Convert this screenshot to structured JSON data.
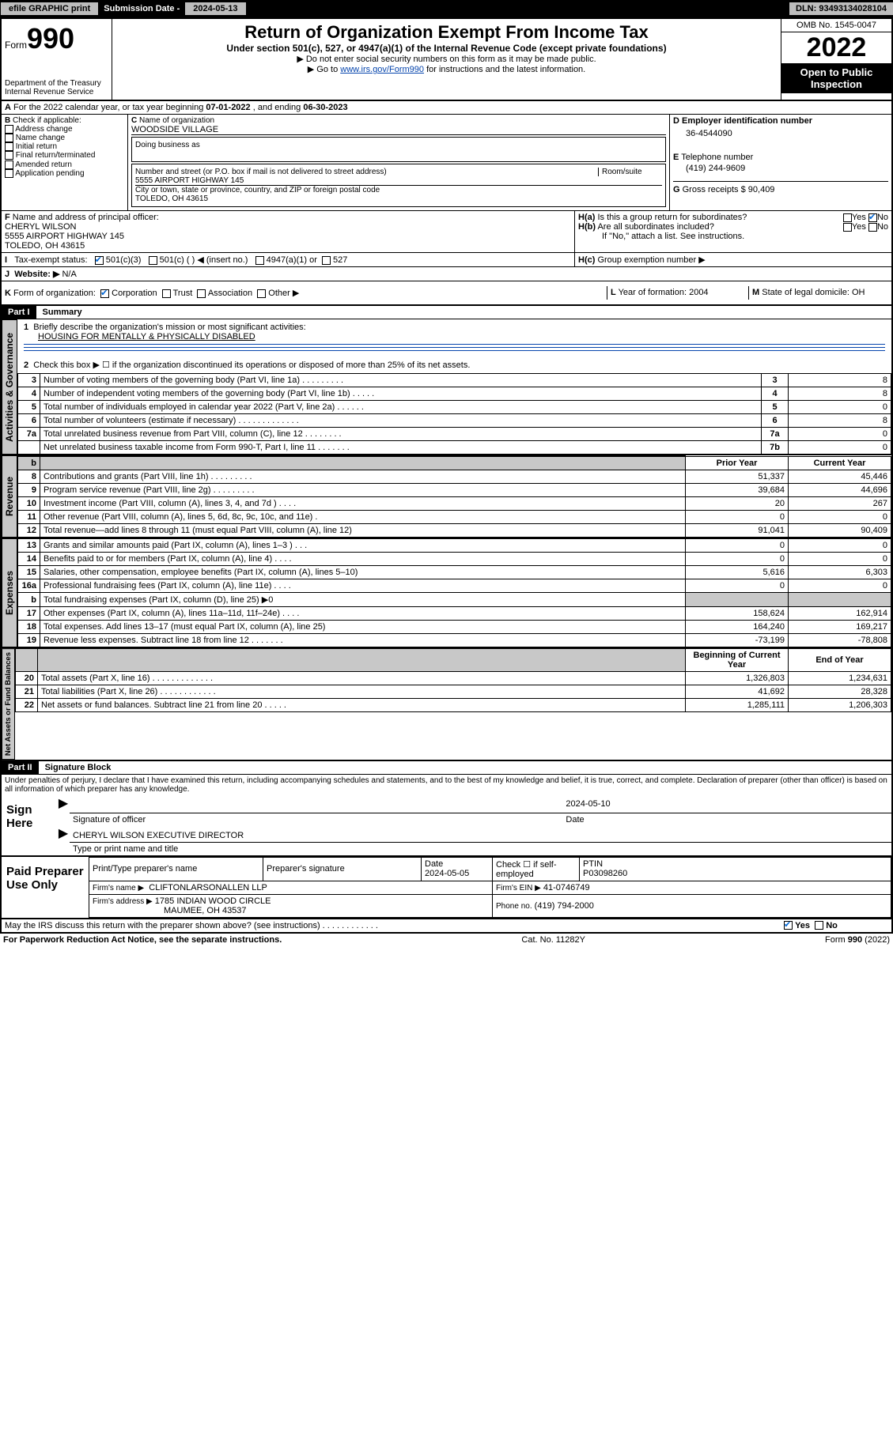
{
  "topbar": {
    "efile": "efile GRAPHIC print",
    "subdate_label": "Submission Date - ",
    "subdate": "2024-05-13",
    "dln_label": "DLN: ",
    "dln": "93493134028104"
  },
  "header": {
    "form_label": "Form",
    "form_no": "990",
    "dept": "Department of the Treasury",
    "irs": "Internal Revenue Service",
    "title": "Return of Organization Exempt From Income Tax",
    "sub": "Under section 501(c), 527, or 4947(a)(1) of the Internal Revenue Code (except private foundations)",
    "note1": "▶ Do not enter social security numbers on this form as it may be made public.",
    "note2_pre": "▶ Go to ",
    "note2_link": "www.irs.gov/Form990",
    "note2_post": " for instructions and the latest information.",
    "omb": "OMB No. 1545-0047",
    "year": "2022",
    "otp1": "Open to Public",
    "otp2": "Inspection"
  },
  "A": {
    "text": "For the 2022 calendar year, or tax year beginning ",
    "begin": "07-01-2022",
    "mid": " , and ending ",
    "end": "06-30-2023"
  },
  "B": {
    "label": "Check if applicable:",
    "items": [
      "Address change",
      "Name change",
      "Initial return",
      "Final return/terminated",
      "Amended return",
      "Application pending"
    ]
  },
  "C": {
    "name_lbl": "Name of organization",
    "name": "WOODSIDE VILLAGE",
    "dba_lbl": "Doing business as",
    "dba": "",
    "street_lbl": "Number and street (or P.O. box if mail is not delivered to street address)",
    "room_lbl": "Room/suite",
    "street": "5555 AIRPORT HIGHWAY 145",
    "city_lbl": "City or town, state or province, country, and ZIP or foreign postal code",
    "city": "TOLEDO, OH  43615"
  },
  "D": {
    "lbl": "Employer identification number",
    "val": "36-4544090"
  },
  "E": {
    "lbl": "Telephone number",
    "val": "(419) 244-9609"
  },
  "G": {
    "lbl": "Gross receipts $",
    "val": "90,409"
  },
  "F": {
    "lbl": "Name and address of principal officer:",
    "name": "CHERYL WILSON",
    "addr1": "5555 AIRPORT HIGHWAY 145",
    "addr2": "TOLEDO, OH  43615"
  },
  "H": {
    "a": "Is this a group return for subordinates?",
    "b": "Are all subordinates included?",
    "note": "If \"No,\" attach a list. See instructions.",
    "c_lbl": "Group exemption number ▶",
    "yes": "Yes",
    "no": "No"
  },
  "I": {
    "lbl": "Tax-exempt status:",
    "o1": "501(c)(3)",
    "o2": "501(c) (  ) ◀ (insert no.)",
    "o3": "4947(a)(1) or",
    "o4": "527"
  },
  "J": {
    "lbl": "Website: ▶",
    "val": "N/A"
  },
  "K": {
    "lbl": "Form of organization:",
    "o1": "Corporation",
    "o2": "Trust",
    "o3": "Association",
    "o4": "Other ▶"
  },
  "L": {
    "lbl": "Year of formation:",
    "val": "2004"
  },
  "M": {
    "lbl": "State of legal domicile:",
    "val": "OH"
  },
  "partI": {
    "hdr": "Part I",
    "title": "Summary",
    "l1_lbl": "Briefly describe the organization's mission or most significant activities:",
    "l1_val": "HOUSING FOR MENTALLY & PHYSICALLY DISABLED",
    "l2": "Check this box ▶ ☐  if the organization discontinued its operations or disposed of more than 25% of its net assets.",
    "vlabels": {
      "ag": "Activities & Governance",
      "rev": "Revenue",
      "exp": "Expenses",
      "nab": "Net Assets or Fund Balances"
    },
    "cols": {
      "prior": "Prior Year",
      "current": "Current Year",
      "boy": "Beginning of Current Year",
      "eoy": "End of Year"
    },
    "gov": [
      {
        "n": "3",
        "t": "Number of voting members of the governing body (Part VI, line 1a)  .   .   .   .   .   .   .   .   .",
        "r": "3",
        "v": "8"
      },
      {
        "n": "4",
        "t": "Number of independent voting members of the governing body (Part VI, line 1b)   .   .   .   .   .",
        "r": "4",
        "v": "8"
      },
      {
        "n": "5",
        "t": "Total number of individuals employed in calendar year 2022 (Part V, line 2a)   .   .   .   .   .   .",
        "r": "5",
        "v": "0"
      },
      {
        "n": "6",
        "t": "Total number of volunteers (estimate if necessary)   .   .   .   .   .   .   .   .   .   .   .   .   .",
        "r": "6",
        "v": "8"
      },
      {
        "n": "7a",
        "t": "Total unrelated business revenue from Part VIII, column (C), line 12   .   .   .   .   .   .   .   .",
        "r": "7a",
        "v": "0"
      },
      {
        "n": "",
        "t": "Net unrelated business taxable income from Form 990-T, Part I, line 11   .   .   .   .   .   .   .",
        "r": "7b",
        "v": "0"
      }
    ],
    "rev": [
      {
        "n": "8",
        "t": "Contributions and grants (Part VIII, line 1h)   .   .   .   .   .   .   .   .   .",
        "p": "51,337",
        "c": "45,446"
      },
      {
        "n": "9",
        "t": "Program service revenue (Part VIII, line 2g)   .   .   .   .   .   .   .   .   .",
        "p": "39,684",
        "c": "44,696"
      },
      {
        "n": "10",
        "t": "Investment income (Part VIII, column (A), lines 3, 4, and 7d )   .   .   .   .",
        "p": "20",
        "c": "267"
      },
      {
        "n": "11",
        "t": "Other revenue (Part VIII, column (A), lines 5, 6d, 8c, 9c, 10c, and 11e)   .",
        "p": "0",
        "c": "0"
      },
      {
        "n": "12",
        "t": "Total revenue—add lines 8 through 11 (must equal Part VIII, column (A), line 12)",
        "p": "91,041",
        "c": "90,409"
      }
    ],
    "exp": [
      {
        "n": "13",
        "t": "Grants and similar amounts paid (Part IX, column (A), lines 1–3 )   .   .   .",
        "p": "0",
        "c": "0"
      },
      {
        "n": "14",
        "t": "Benefits paid to or for members (Part IX, column (A), line 4)   .   .   .   .",
        "p": "0",
        "c": "0"
      },
      {
        "n": "15",
        "t": "Salaries, other compensation, employee benefits (Part IX, column (A), lines 5–10)",
        "p": "5,616",
        "c": "6,303"
      },
      {
        "n": "16a",
        "t": "Professional fundraising fees (Part IX, column (A), line 11e)   .   .   .   .",
        "p": "0",
        "c": "0"
      },
      {
        "n": "b",
        "t": "Total fundraising expenses (Part IX, column (D), line 25) ▶0",
        "p": "",
        "c": "",
        "shade": true
      },
      {
        "n": "17",
        "t": "Other expenses (Part IX, column (A), lines 11a–11d, 11f–24e)   .   .   .   .",
        "p": "158,624",
        "c": "162,914"
      },
      {
        "n": "18",
        "t": "Total expenses. Add lines 13–17 (must equal Part IX, column (A), line 25)",
        "p": "164,240",
        "c": "169,217"
      },
      {
        "n": "19",
        "t": "Revenue less expenses. Subtract line 18 from line 12   .   .   .   .   .   .   .",
        "p": "-73,199",
        "c": "-78,808"
      }
    ],
    "nab": [
      {
        "n": "20",
        "t": "Total assets (Part X, line 16)   .   .   .   .   .   .   .   .   .   .   .   .   .",
        "p": "1,326,803",
        "c": "1,234,631"
      },
      {
        "n": "21",
        "t": "Total liabilities (Part X, line 26)   .   .   .   .   .   .   .   .   .   .   .   .",
        "p": "41,692",
        "c": "28,328"
      },
      {
        "n": "22",
        "t": "Net assets or fund balances. Subtract line 21 from line 20   .   .   .   .   .",
        "p": "1,285,111",
        "c": "1,206,303"
      }
    ]
  },
  "partII": {
    "hdr": "Part II",
    "title": "Signature Block",
    "decl": "Under penalties of perjury, I declare that I have examined this return, including accompanying schedules and statements, and to the best of my knowledge and belief, it is true, correct, and complete. Declaration of preparer (other than officer) is based on all information of which preparer has any knowledge.",
    "sign_here": "Sign Here",
    "sig_officer": "Signature of officer",
    "date_lbl": "Date",
    "sig_date": "2024-05-10",
    "officer_name": "CHERYL WILSON  EXECUTIVE DIRECTOR",
    "type_name": "Type or print name and title",
    "paid": "Paid Preparer Use Only",
    "pt_name_lbl": "Print/Type preparer's name",
    "pt_sig_lbl": "Preparer's signature",
    "pt_date_lbl": "Date",
    "pt_date": "2024-05-05",
    "pt_check": "Check ☐ if self-employed",
    "ptin_lbl": "PTIN",
    "ptin": "P03098260",
    "firm_name_lbl": "Firm's name   ▶",
    "firm_name": "CLIFTONLARSONALLEN LLP",
    "firm_ein_lbl": "Firm's EIN ▶",
    "firm_ein": "41-0746749",
    "firm_addr_lbl": "Firm's address ▶",
    "firm_addr1": "1785 INDIAN WOOD CIRCLE",
    "firm_addr2": "MAUMEE, OH  43537",
    "phone_lbl": "Phone no.",
    "phone": "(419) 794-2000",
    "discuss": "May the IRS discuss this return with the preparer shown above? (see instructions)   .   .   .   .   .   .   .   .   .   .   .   .",
    "yes": "Yes",
    "no": "No"
  },
  "footer": {
    "pra": "For Paperwork Reduction Act Notice, see the separate instructions.",
    "cat": "Cat. No. 11282Y",
    "form": "Form 990 (2022)"
  }
}
